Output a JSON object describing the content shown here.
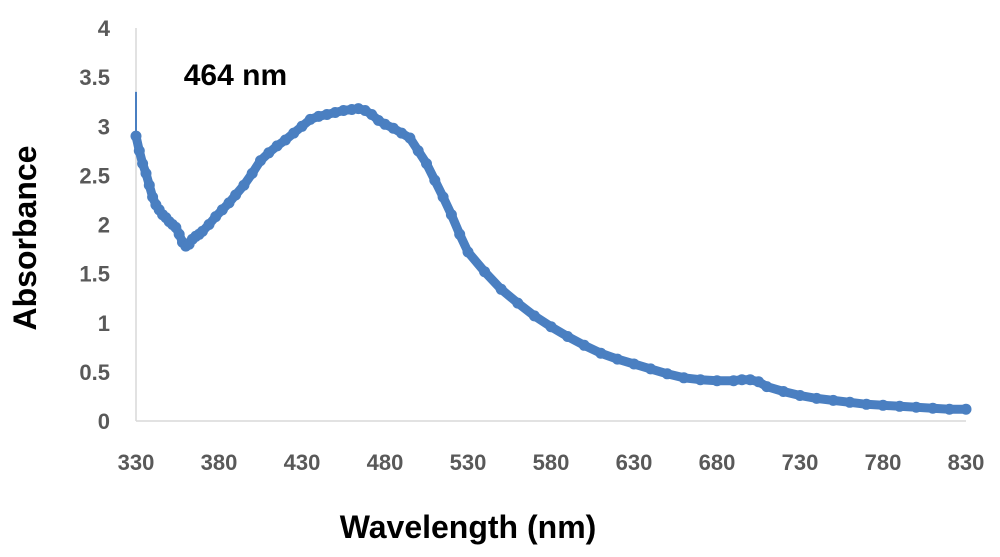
{
  "chart_data": {
    "type": "line",
    "title": "",
    "xlabel": "Wavelength (nm)",
    "ylabel": "Absorbance",
    "xlim": [
      330,
      830
    ],
    "ylim": [
      0,
      4
    ],
    "x_ticks": [
      "330",
      "380",
      "430",
      "480",
      "530",
      "580",
      "630",
      "680",
      "730",
      "780",
      "830"
    ],
    "y_ticks": [
      "0",
      "0.5",
      "1",
      "1.5",
      "2",
      "2.5",
      "3",
      "3.5",
      "4"
    ],
    "annotations": [
      {
        "text": "464 nm",
        "x": 464,
        "y": 3.5
      }
    ],
    "grid": false,
    "legend": "none",
    "line_color": "#4a7fc1",
    "series": [
      {
        "x": [
          330,
          332,
          334,
          336,
          338,
          340,
          342,
          344,
          346,
          348,
          350,
          352,
          354,
          356,
          358,
          360,
          362,
          364,
          366,
          368,
          370,
          374,
          378,
          382,
          386,
          390,
          395,
          400,
          405,
          410,
          415,
          420,
          425,
          430,
          435,
          440,
          445,
          450,
          455,
          460,
          464,
          468,
          472,
          476,
          480,
          485,
          490,
          495,
          500,
          505,
          510,
          515,
          520,
          525,
          530,
          540,
          550,
          560,
          570,
          580,
          590,
          600,
          610,
          620,
          630,
          640,
          650,
          660,
          670,
          680,
          690,
          695,
          700,
          705,
          710,
          720,
          730,
          740,
          750,
          760,
          770,
          780,
          790,
          800,
          810,
          820,
          830
        ],
        "y": [
          2.9,
          2.75,
          2.62,
          2.52,
          2.4,
          2.28,
          2.2,
          2.15,
          2.1,
          2.07,
          2.03,
          2.0,
          1.97,
          1.9,
          1.82,
          1.78,
          1.8,
          1.85,
          1.88,
          1.9,
          1.93,
          2.0,
          2.08,
          2.15,
          2.22,
          2.3,
          2.4,
          2.52,
          2.65,
          2.73,
          2.8,
          2.86,
          2.93,
          3.0,
          3.07,
          3.1,
          3.12,
          3.14,
          3.16,
          3.17,
          3.18,
          3.16,
          3.12,
          3.06,
          3.02,
          2.98,
          2.93,
          2.88,
          2.75,
          2.62,
          2.45,
          2.28,
          2.1,
          1.9,
          1.72,
          1.52,
          1.34,
          1.2,
          1.07,
          0.96,
          0.86,
          0.77,
          0.69,
          0.63,
          0.58,
          0.53,
          0.48,
          0.44,
          0.42,
          0.41,
          0.41,
          0.42,
          0.42,
          0.4,
          0.35,
          0.3,
          0.26,
          0.23,
          0.21,
          0.19,
          0.17,
          0.16,
          0.15,
          0.14,
          0.13,
          0.12,
          0.12
        ]
      }
    ]
  }
}
